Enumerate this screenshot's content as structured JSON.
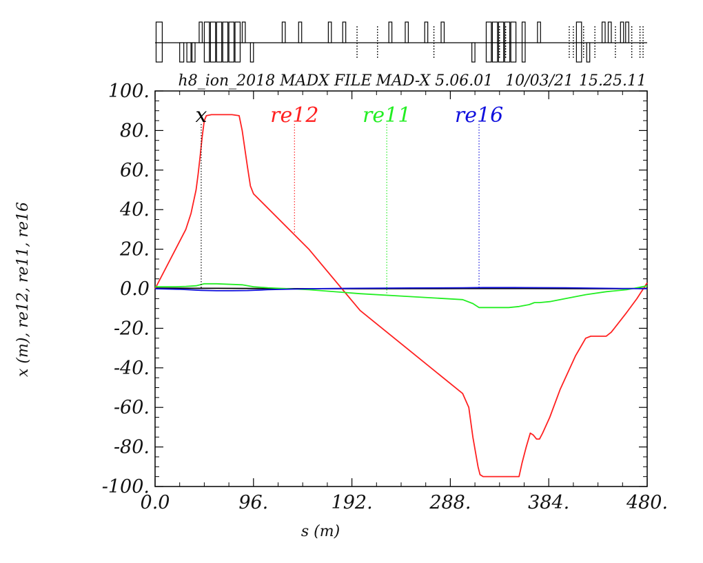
{
  "header": {
    "file": "h8_ion_2018 MADX FILE",
    "program": "MAD-X 5.06.01",
    "date": "10/03/21",
    "time": "15.25.11"
  },
  "chart_data": {
    "type": "line",
    "xlabel": "s (m)",
    "ylabel": "x (m), re12, re11, re16",
    "xlim": [
      0,
      480
    ],
    "ylim": [
      -100,
      100
    ],
    "x_ticks": [
      "0.0",
      "96.",
      "192.",
      "288.",
      "384.",
      "480."
    ],
    "y_ticks": [
      "100.",
      "80.",
      "60.",
      "40.",
      "20.",
      "0.0",
      "-20.",
      "-40.",
      "-60.",
      "-80.",
      "-100."
    ],
    "grid": false,
    "series": [
      {
        "name": "x",
        "color": "#000000",
        "label_s": 45,
        "x": [
          0,
          40,
          60,
          100,
          150,
          200,
          250,
          300,
          350,
          400,
          450,
          480
        ],
        "y": [
          0.3,
          0.2,
          0.2,
          0.1,
          0.05,
          0.0,
          0.05,
          0.1,
          0.1,
          0.05,
          0.0,
          0.2
        ]
      },
      {
        "name": "re12",
        "color": "#ff2020",
        "label_s": 136,
        "x": [
          0,
          20,
          30,
          35,
          40,
          42,
          44,
          46,
          48,
          50,
          55,
          65,
          75,
          82,
          85,
          90,
          93,
          96,
          150,
          200,
          250,
          300,
          306,
          310,
          315,
          317,
          320,
          330,
          345,
          352,
          355,
          358,
          362,
          366,
          369,
          372,
          375,
          378,
          385,
          395,
          410,
          420,
          425,
          430,
          435,
          440,
          445,
          460,
          470,
          480
        ],
        "y": [
          0,
          20,
          30,
          38,
          50,
          58,
          67,
          77,
          85,
          87.5,
          88,
          88,
          88,
          87.5,
          80,
          62,
          52,
          48,
          20,
          -11,
          -32,
          -53,
          -60,
          -75,
          -90,
          -94,
          -95,
          -95,
          -95,
          -95,
          -95,
          -88,
          -80,
          -73,
          -74,
          -76,
          -76,
          -73,
          -65,
          -51,
          -34,
          -25,
          -24,
          -24,
          -24,
          -24,
          -22,
          -12,
          -5,
          3
        ]
      },
      {
        "name": "re11",
        "color": "#22ee22",
        "label_s": 226,
        "x": [
          0,
          20,
          30,
          40,
          48,
          60,
          85,
          96,
          110,
          130,
          150,
          200,
          250,
          300,
          310,
          316,
          320,
          330,
          345,
          355,
          360,
          365,
          370,
          375,
          385,
          400,
          420,
          440,
          460,
          470,
          475,
          480
        ],
        "y": [
          1.0,
          1.0,
          1.2,
          1.5,
          2.5,
          2.5,
          2.0,
          1.0,
          0.5,
          0.0,
          -0.5,
          -2.5,
          -4.0,
          -5.5,
          -7.5,
          -9.5,
          -9.5,
          -9.5,
          -9.5,
          -9.0,
          -8.5,
          -8.0,
          -7.0,
          -7.0,
          -6.5,
          -5.0,
          -3.0,
          -1.5,
          -0.5,
          0.5,
          1.0,
          1.5
        ]
      },
      {
        "name": "re16",
        "color": "#1010dd",
        "label_s": 316,
        "x": [
          0,
          25,
          45,
          60,
          75,
          90,
          110,
          150,
          192,
          250,
          300,
          320,
          350,
          400,
          440,
          480
        ],
        "y": [
          0,
          -0.3,
          -0.8,
          -1.0,
          -1.0,
          -0.9,
          -0.5,
          0.0,
          0.2,
          0.4,
          0.5,
          0.6,
          0.6,
          0.5,
          0.2,
          0.0
        ]
      }
    ]
  },
  "beamline": {
    "elements": [
      {
        "s": 1,
        "w": 6,
        "t": "up"
      },
      {
        "s": 1,
        "w": 6,
        "t": "down"
      },
      {
        "s": 24,
        "w": 4,
        "t": "down"
      },
      {
        "s": 31,
        "w": 4,
        "t": "down"
      },
      {
        "s": 36,
        "w": 3,
        "t": "down"
      },
      {
        "s": 43,
        "w": 3,
        "t": "up"
      },
      {
        "s": 48,
        "w": 5,
        "t": "up"
      },
      {
        "s": 54,
        "w": 5,
        "t": "up"
      },
      {
        "s": 60,
        "w": 5,
        "t": "up"
      },
      {
        "s": 66,
        "w": 5,
        "t": "up"
      },
      {
        "s": 72,
        "w": 5,
        "t": "up"
      },
      {
        "s": 78,
        "w": 5,
        "t": "up"
      },
      {
        "s": 48,
        "w": 5,
        "t": "down"
      },
      {
        "s": 54,
        "w": 5,
        "t": "down"
      },
      {
        "s": 60,
        "w": 5,
        "t": "down"
      },
      {
        "s": 66,
        "w": 5,
        "t": "down"
      },
      {
        "s": 72,
        "w": 5,
        "t": "down"
      },
      {
        "s": 78,
        "w": 5,
        "t": "down"
      },
      {
        "s": 85,
        "w": 3,
        "t": "up"
      },
      {
        "s": 93,
        "w": 3,
        "t": "down"
      },
      {
        "s": 124,
        "w": 3,
        "t": "up"
      },
      {
        "s": 140,
        "w": 3,
        "t": "up"
      },
      {
        "s": 169,
        "w": 3,
        "t": "up"
      },
      {
        "s": 183,
        "w": 3,
        "t": "up"
      },
      {
        "s": 197,
        "w": 0,
        "t": "mark"
      },
      {
        "s": 217,
        "w": 0,
        "t": "mark"
      },
      {
        "s": 228,
        "w": 3,
        "t": "up"
      },
      {
        "s": 244,
        "w": 3,
        "t": "up"
      },
      {
        "s": 263,
        "w": 3,
        "t": "up"
      },
      {
        "s": 272,
        "w": 0,
        "t": "mark"
      },
      {
        "s": 279,
        "w": 3,
        "t": "up"
      },
      {
        "s": 309,
        "w": 3,
        "t": "down"
      },
      {
        "s": 323,
        "w": 5,
        "t": "up"
      },
      {
        "s": 329,
        "w": 5,
        "t": "up"
      },
      {
        "s": 335,
        "w": 5,
        "t": "up"
      },
      {
        "s": 341,
        "w": 5,
        "t": "up"
      },
      {
        "s": 347,
        "w": 5,
        "t": "up"
      },
      {
        "s": 323,
        "w": 5,
        "t": "down"
      },
      {
        "s": 329,
        "w": 5,
        "t": "down"
      },
      {
        "s": 335,
        "w": 5,
        "t": "down"
      },
      {
        "s": 341,
        "w": 5,
        "t": "down"
      },
      {
        "s": 347,
        "w": 5,
        "t": "down"
      },
      {
        "s": 336,
        "w": 0,
        "t": "mark"
      },
      {
        "s": 342,
        "w": 0,
        "t": "mark"
      },
      {
        "s": 358,
        "w": 3,
        "t": "up"
      },
      {
        "s": 358,
        "w": 3,
        "t": "down"
      },
      {
        "s": 373,
        "w": 3,
        "t": "up"
      },
      {
        "s": 404,
        "w": 0,
        "t": "mark"
      },
      {
        "s": 408,
        "w": 0,
        "t": "mark"
      },
      {
        "s": 411,
        "w": 5,
        "t": "up"
      },
      {
        "s": 411,
        "w": 5,
        "t": "down"
      },
      {
        "s": 418,
        "w": 0,
        "t": "mark"
      },
      {
        "s": 421,
        "w": 3,
        "t": "down"
      },
      {
        "s": 429,
        "w": 0,
        "t": "mark"
      },
      {
        "s": 436,
        "w": 3,
        "t": "up"
      },
      {
        "s": 442,
        "w": 3,
        "t": "up"
      },
      {
        "s": 449,
        "w": 0,
        "t": "mark"
      },
      {
        "s": 454,
        "w": 3,
        "t": "up"
      },
      {
        "s": 459,
        "w": 3,
        "t": "up"
      },
      {
        "s": 465,
        "w": 0,
        "t": "mark"
      },
      {
        "s": 473,
        "w": 0,
        "t": "mark"
      },
      {
        "s": 476,
        "w": 0,
        "t": "mark"
      }
    ]
  }
}
